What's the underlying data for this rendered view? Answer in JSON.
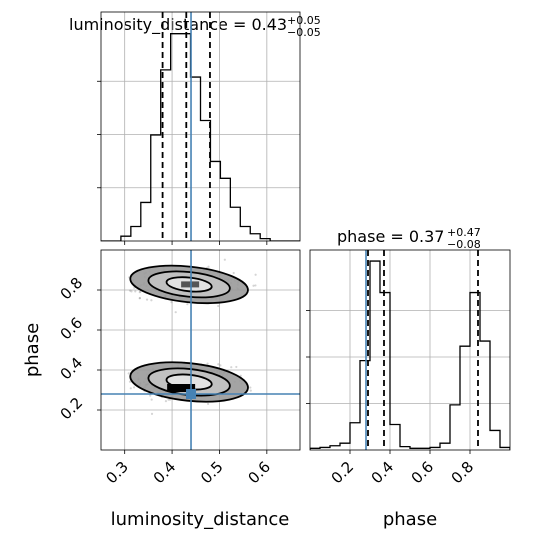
{
  "chart_data": {
    "type": "corner",
    "truth_color": "#4682b4",
    "parameters": [
      {
        "name": "luminosity_distance",
        "title_main": "luminosity_distance = 0.43",
        "title_plus": "+0.05",
        "title_minus": "−0.05",
        "median": 0.43,
        "quantiles": [
          0.38,
          0.43,
          0.48
        ],
        "truth": 0.44,
        "range": [
          0.25,
          0.67
        ],
        "ticks": [
          0.3,
          0.4,
          0.5,
          0.6
        ],
        "tick_labels": [
          "0.3",
          "0.4",
          "0.5",
          "0.6"
        ],
        "xlabel": "luminosity_distance",
        "hist": {
          "edges": [
            0.25,
            0.271,
            0.292,
            0.313,
            0.334,
            0.355,
            0.376,
            0.397,
            0.418,
            0.439,
            0.46,
            0.481,
            0.502,
            0.523,
            0.544,
            0.565,
            0.586,
            0.607,
            0.628,
            0.649,
            0.67
          ],
          "counts": [
            0,
            0,
            2,
            6,
            16,
            44,
            71,
            86,
            86,
            68,
            50,
            33,
            26,
            14,
            6,
            3,
            1,
            0,
            0,
            0
          ],
          "ymax": 95
        }
      },
      {
        "name": "phase",
        "title_main": "phase = 0.37",
        "title_plus": "+0.47",
        "title_minus": "−0.08",
        "median": 0.37,
        "quantiles": [
          0.29,
          0.37,
          0.84
        ],
        "truth": 0.28,
        "range": [
          0.0,
          1.0
        ],
        "ticks": [
          0.2,
          0.4,
          0.6,
          0.8
        ],
        "tick_labels": [
          "0.2",
          "0.4",
          "0.6",
          "0.8"
        ],
        "xlabel": "phase",
        "ylabel": "phase",
        "hist": {
          "edges": [
            0.0,
            0.05,
            0.1,
            0.15,
            0.2,
            0.25,
            0.3,
            0.35,
            0.4,
            0.45,
            0.5,
            0.55,
            0.6,
            0.65,
            0.7,
            0.75,
            0.8,
            0.85,
            0.9,
            0.95,
            1.0
          ],
          "counts": [
            0.2,
            0.3,
            0.5,
            0.8,
            3.2,
            10.5,
            22.2,
            18.5,
            3.0,
            0.4,
            0.2,
            0.2,
            0.3,
            0.8,
            5.3,
            12.2,
            18.5,
            12.8,
            2.3,
            0.3
          ],
          "ymax": 23.5
        }
      }
    ],
    "joint": {
      "x_param": "luminosity_distance",
      "y_param": "phase",
      "truth_point": [
        0.44,
        0.28
      ],
      "modes": [
        {
          "cx": 0.432,
          "cy": 0.34,
          "sx": 0.048,
          "sy": 0.038,
          "weight": 0.55
        },
        {
          "cx": 0.432,
          "cy": 0.828,
          "sx": 0.048,
          "sy": 0.036,
          "weight": 0.45
        }
      ],
      "contour_levels": [
        1.0,
        1.8,
        2.6
      ]
    },
    "grid": true
  }
}
